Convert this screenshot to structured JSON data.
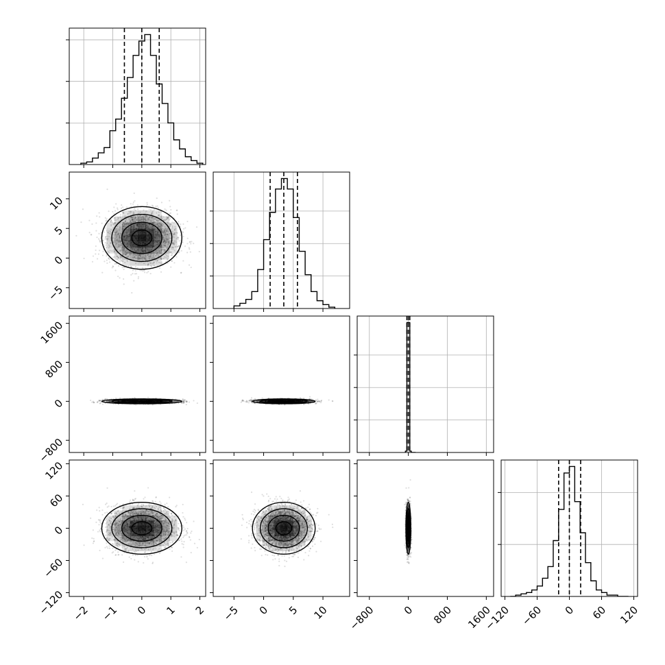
{
  "chart_data": {
    "type": "corner",
    "parameters": [
      {
        "median": 0.0,
        "q16": -0.6,
        "q84": 0.6,
        "range": [
          -2.5,
          2.2
        ],
        "ticks": [
          -2,
          -1,
          0,
          1,
          2
        ],
        "tick_labels": [
          "−2",
          "−1",
          "0",
          "1",
          "2"
        ],
        "hist_bins": [
          -2.1,
          -1.9,
          -1.7,
          -1.5,
          -1.3,
          -1.1,
          -0.9,
          -0.7,
          -0.5,
          -0.3,
          -0.1,
          0.1,
          0.3,
          0.5,
          0.7,
          0.9,
          1.1,
          1.3,
          1.5,
          1.7,
          1.9,
          2.1
        ],
        "hist_counts": [
          0.01,
          0.02,
          0.05,
          0.09,
          0.13,
          0.26,
          0.35,
          0.51,
          0.67,
          0.84,
          0.95,
          1.0,
          0.84,
          0.62,
          0.47,
          0.32,
          0.19,
          0.12,
          0.06,
          0.03,
          0.01,
          0.0
        ],
        "hist_ymax": 1.05,
        "hist_yticks": [
          0.32,
          0.64,
          0.96
        ]
      },
      {
        "median": 3.4,
        "q16": 1.1,
        "q84": 5.7,
        "range": [
          -8.5,
          14.5
        ],
        "ticks": [
          -5,
          0,
          5,
          10
        ],
        "tick_labels": [
          "−5",
          "0",
          "5",
          "10"
        ],
        "hist_bins": [
          -5.0,
          -4.0,
          -3.0,
          -2.0,
          -1.0,
          0.0,
          1.0,
          2.0,
          3.0,
          4.0,
          5.0,
          6.0,
          7.0,
          8.0,
          9.0,
          10.0,
          11.0,
          12.0
        ],
        "hist_counts": [
          0.02,
          0.04,
          0.07,
          0.13,
          0.3,
          0.53,
          0.74,
          0.92,
          1.0,
          0.92,
          0.7,
          0.44,
          0.26,
          0.13,
          0.06,
          0.03,
          0.01
        ],
        "hist_ymax": 1.05,
        "hist_yticks": [
          0.25,
          0.5,
          0.75
        ]
      },
      {
        "median": 0.0,
        "q16": -30,
        "q84": 30,
        "range": [
          -1050,
          1750
        ],
        "ticks": [
          -800,
          0,
          800,
          1600
        ],
        "tick_labels": [
          "−800",
          "0",
          "800",
          "1600"
        ],
        "hist_bins": [
          -60,
          -30,
          0,
          30,
          60,
          90,
          120,
          150
        ],
        "hist_counts": [
          0.01,
          1.0,
          1.0,
          0.01,
          0.0,
          0.0,
          0.0
        ],
        "hist_ymax": 1.05,
        "hist_yticks": [
          0.25,
          0.5,
          0.75
        ]
      },
      {
        "median": 0.0,
        "q16": -20,
        "q84": 21,
        "range": [
          -127,
          127
        ],
        "ticks": [
          -120,
          -60,
          0,
          60,
          120
        ],
        "tick_labels": [
          "−120",
          "−60",
          "0",
          "60",
          "120"
        ],
        "hist_bins": [
          -110,
          -100,
          -90,
          -80,
          -70,
          -60,
          -50,
          -40,
          -30,
          -20,
          -10,
          0,
          10,
          20,
          30,
          40,
          50,
          60,
          70,
          80,
          90,
          100,
          110
        ],
        "hist_counts": [
          0.0,
          0.01,
          0.02,
          0.03,
          0.05,
          0.08,
          0.14,
          0.23,
          0.43,
          0.67,
          0.95,
          1.0,
          0.73,
          0.49,
          0.26,
          0.12,
          0.05,
          0.03,
          0.01,
          0.01,
          0.0,
          0.0
        ],
        "hist_ymax": 1.05,
        "hist_yticks": [
          0.4,
          0.8
        ]
      }
    ],
    "pairs": [
      {
        "row": 1,
        "col": 0,
        "mean": [
          0,
          3.4
        ],
        "sd": [
          0.6,
          2.3
        ],
        "spread": 1.0
      },
      {
        "row": 2,
        "col": 0,
        "mean": [
          0,
          0
        ],
        "sd": [
          0.6,
          22
        ],
        "spread": 1.0
      },
      {
        "row": 2,
        "col": 1,
        "mean": [
          3.4,
          0
        ],
        "sd": [
          2.3,
          22
        ],
        "spread": 1.0
      },
      {
        "row": 3,
        "col": 0,
        "mean": [
          0,
          0
        ],
        "sd": [
          0.6,
          21
        ],
        "spread": 1.0
      },
      {
        "row": 3,
        "col": 1,
        "mean": [
          3.4,
          0
        ],
        "sd": [
          2.3,
          21
        ],
        "spread": 1.0
      },
      {
        "row": 3,
        "col": 2,
        "mean": [
          0,
          0
        ],
        "sd": [
          22,
          21
        ],
        "spread": 1.0
      }
    ],
    "contour_sigma_levels": [
      0.5,
      1.0,
      1.5,
      2.0
    ],
    "grid": true,
    "colors": {
      "line": "#000000",
      "grid": "#b0b0b0",
      "points": "#000000"
    }
  }
}
